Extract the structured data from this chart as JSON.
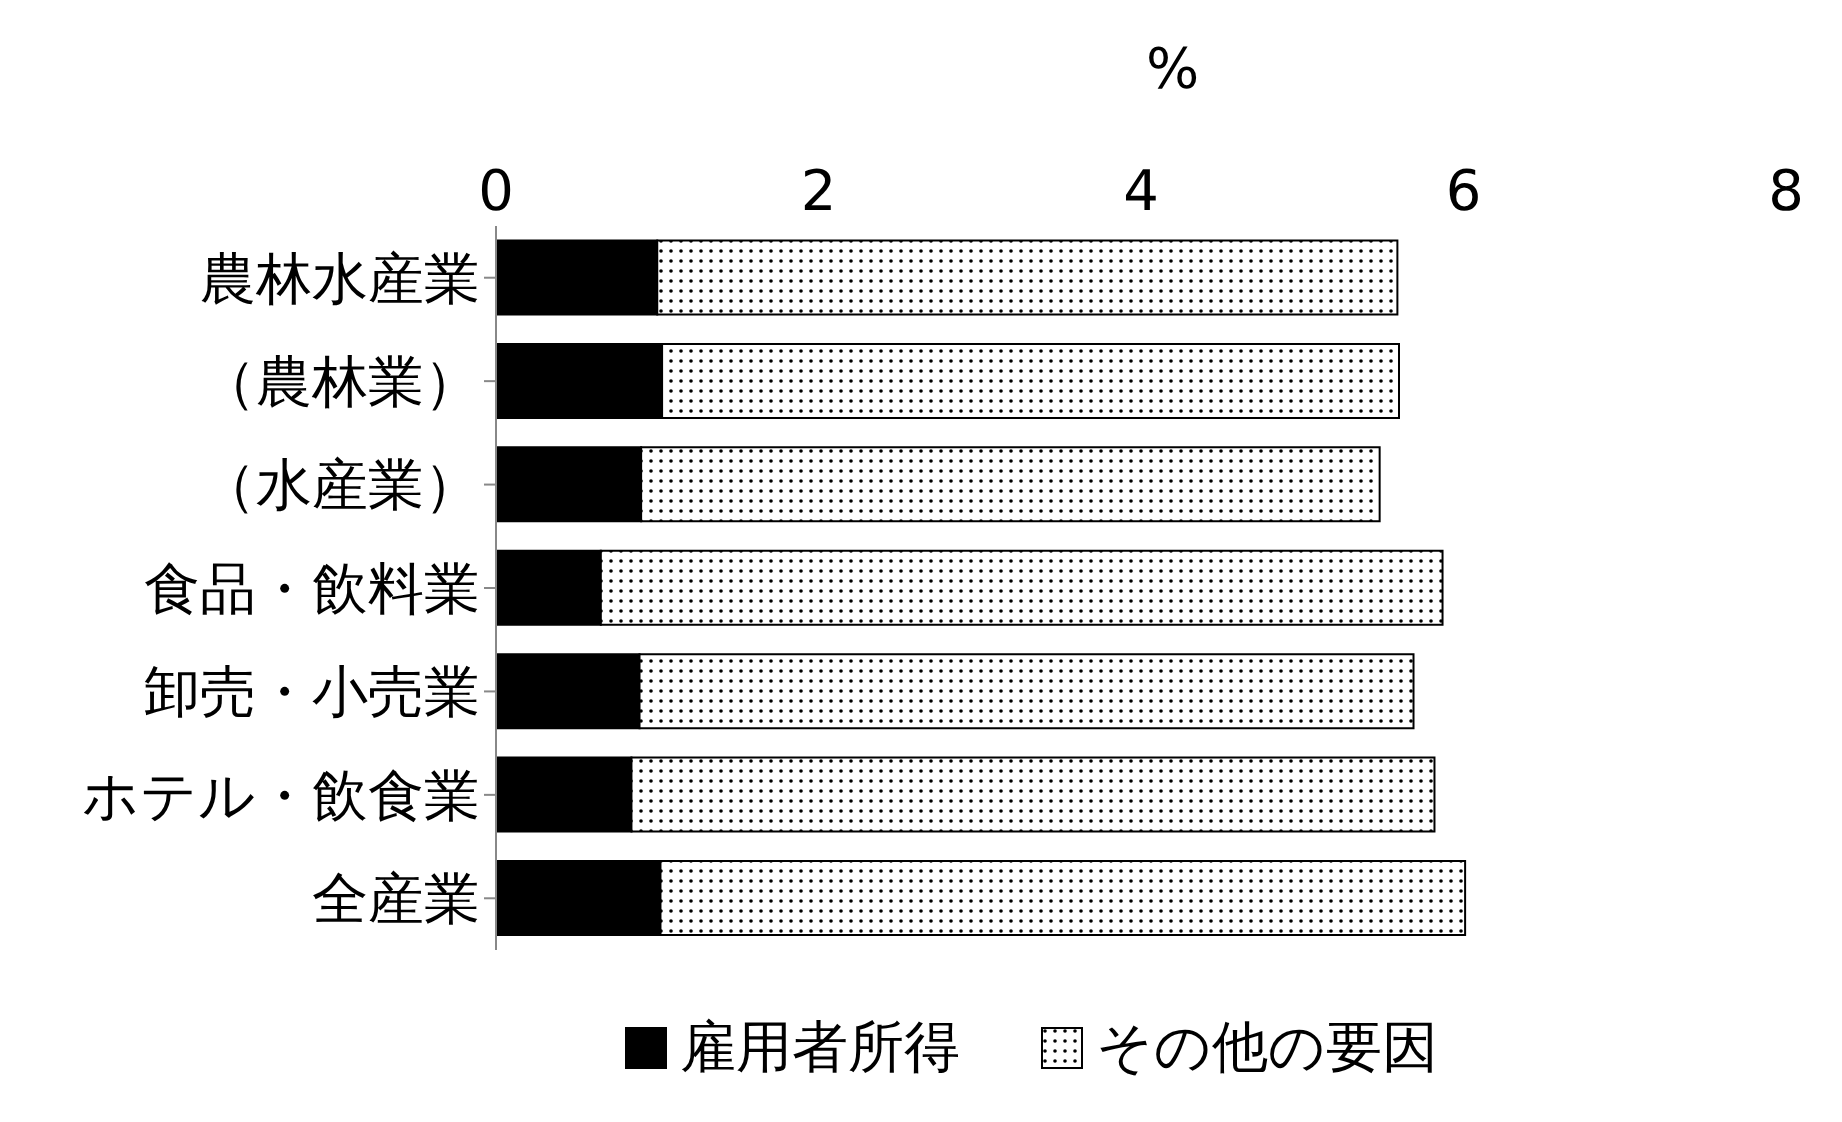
{
  "chart_data": {
    "type": "bar",
    "orientation": "horizontal",
    "stacked": true,
    "xlabel": "%",
    "categories": [
      "農林水産業",
      "（農林業）",
      "（水産業）",
      "食品・飲料業",
      "卸売・小売業",
      "ホテル・飲食業",
      "全産業"
    ],
    "series": [
      {
        "name": "雇用者所得",
        "color": "#000000",
        "values": [
          1.0,
          1.03,
          0.9,
          0.65,
          0.89,
          0.84,
          1.02
        ]
      },
      {
        "name": "その他の要因",
        "color": "#000000",
        "values": [
          4.59,
          4.57,
          4.58,
          5.22,
          4.8,
          4.98,
          4.99
        ]
      }
    ],
    "xlim": [
      0,
      8
    ],
    "xticks": [
      0,
      2,
      4,
      6,
      8
    ],
    "legend": "bottom"
  }
}
